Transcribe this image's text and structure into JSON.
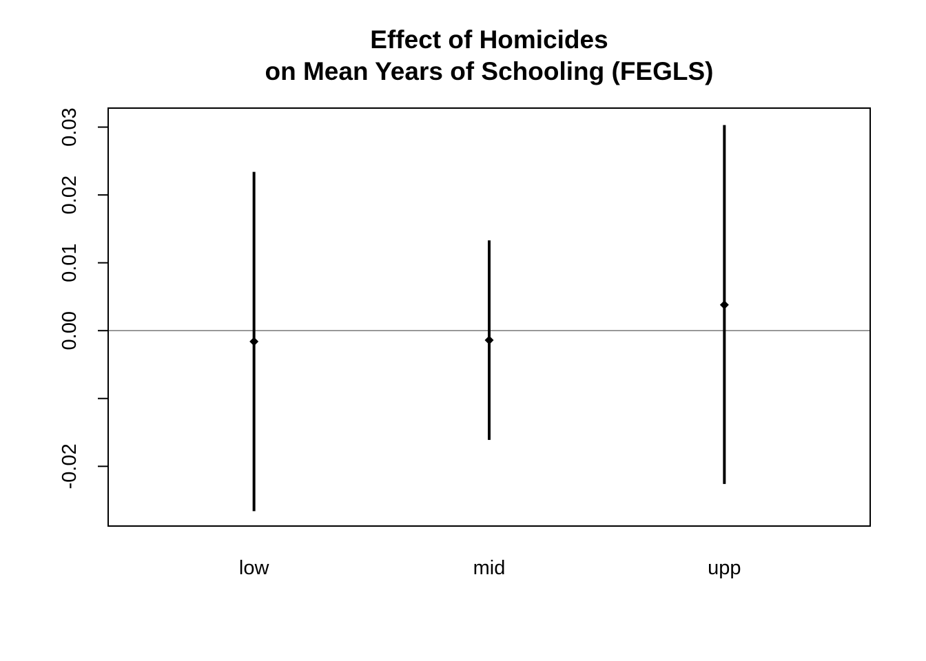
{
  "chart_data": {
    "type": "scatter",
    "title_lines": [
      "Effect of Homicides",
      "on Mean Years of Schooling (FEGLS)"
    ],
    "xlabel": "",
    "ylabel": "",
    "categories": [
      "low",
      "mid",
      "upp"
    ],
    "estimates": [
      -0.0016,
      -0.0014,
      0.0038
    ],
    "ci_lower": [
      -0.0266,
      -0.0161,
      -0.0226
    ],
    "ci_upper": [
      0.0234,
      0.0133,
      0.0303
    ],
    "ylim": [
      -0.0288,
      0.0328
    ],
    "xlim": [
      0.38,
      3.62
    ],
    "y_ticks": [
      -0.02,
      -0.01,
      0.0,
      0.01,
      0.02,
      0.03
    ],
    "y_tick_labels": [
      "-0.02",
      "",
      "0.00",
      "0.01",
      "0.02",
      "0.03"
    ],
    "reference_line_y": 0.0,
    "grid": false,
    "colors": {
      "marks": "#000000",
      "reference_line": "#6b6b6b",
      "frame": "#000000"
    }
  }
}
